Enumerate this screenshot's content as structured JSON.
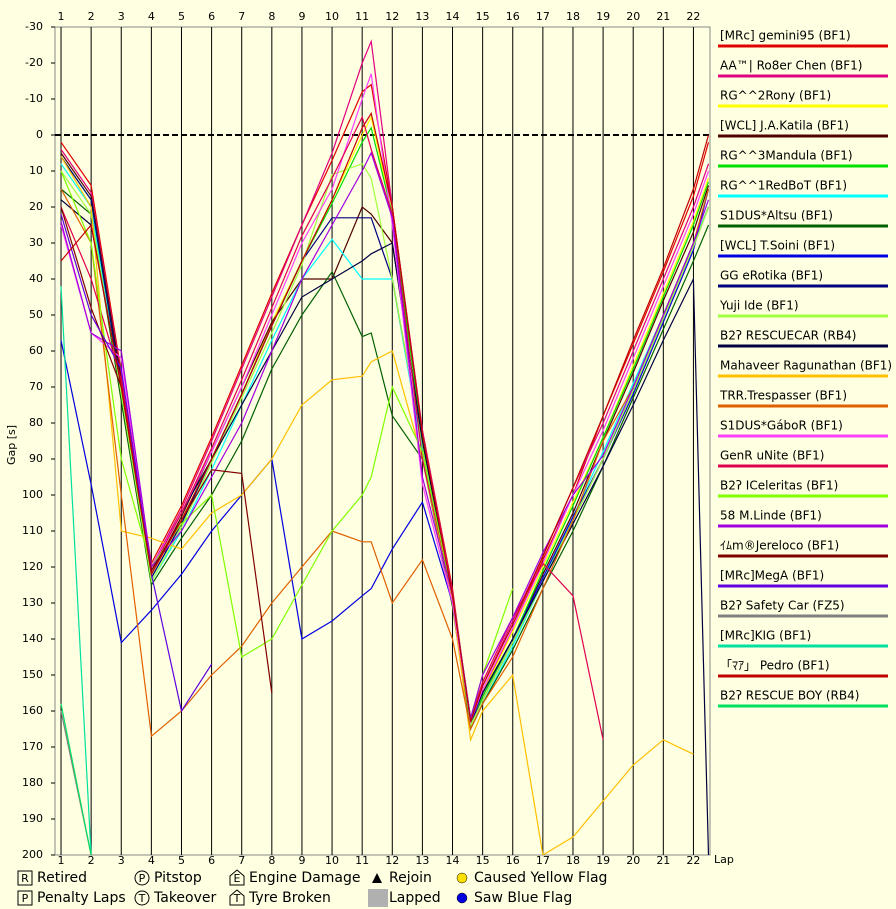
{
  "chart_data": {
    "type": "line",
    "y_label": "Gap [s]",
    "x_label": "Lap",
    "xlim": [
      0.8,
      22.55
    ],
    "xticks": [
      1,
      2,
      3,
      4,
      5,
      6,
      7,
      8,
      9,
      10,
      11,
      12,
      13,
      14,
      15,
      16,
      17,
      18,
      19,
      20,
      21,
      22
    ],
    "ylim": [
      200,
      -30
    ],
    "yticks": [
      -30,
      -20,
      -10,
      0,
      10,
      20,
      30,
      40,
      50,
      60,
      70,
      80,
      90,
      100,
      110,
      120,
      130,
      140,
      150,
      160,
      170,
      180,
      190,
      200
    ],
    "reference_line": 0,
    "x": [
      1,
      2,
      3,
      4,
      5,
      6,
      7,
      8,
      9,
      10,
      11,
      11.3,
      12,
      13,
      14,
      14.6,
      15,
      16,
      17,
      18,
      19,
      20,
      21,
      22,
      22.5
    ],
    "series": [
      {
        "name": "[MRc] gemini95 (BF1)",
        "color": "#e00000",
        "values": [
          2,
          14,
          66,
          119,
          103,
          84,
          64,
          44,
          25,
          7,
          -12,
          -14,
          20,
          82,
          126,
          164,
          155,
          137,
          118,
          100,
          78,
          58,
          38,
          17,
          2
        ]
      },
      {
        "name": "AA™| Ro8er Chen (BF1)",
        "color": "#e0007f",
        "values": [
          4,
          16,
          67,
          120,
          104,
          85,
          65,
          45,
          25,
          5,
          -20,
          -26,
          20,
          82,
          127,
          163,
          153,
          135,
          117,
          98,
          80,
          60,
          40,
          20,
          8
        ]
      },
      {
        "name": "RG^^2Rony (BF1)",
        "color": "#ffff00",
        "values": [
          8,
          20,
          70,
          122,
          107,
          90,
          72,
          52,
          35,
          18,
          0,
          -5,
          22,
          84,
          128,
          163,
          155,
          138,
          120,
          102,
          84,
          64,
          44,
          24,
          12
        ]
      },
      {
        "name": "[WCL] J.A.Katila (BF1)",
        "color": "#500000",
        "values": [
          5,
          17,
          68,
          122,
          106,
          88,
          70,
          52,
          40,
          40,
          20,
          22,
          30,
          85,
          128,
          164,
          156,
          140,
          122,
          105,
          85,
          66,
          46,
          27,
          14
        ]
      },
      {
        "name": "RG^^3Mandula (BF1)",
        "color": "#00e000",
        "values": [
          6,
          18,
          70,
          123,
          108,
          90,
          72,
          53,
          35,
          19,
          2,
          -2,
          22,
          85,
          129,
          164,
          156,
          140,
          121,
          103,
          84,
          65,
          45,
          25,
          13
        ]
      },
      {
        "name": "RG^^1RedBoT (BF1)",
        "color": "#00ffff",
        "values": [
          8,
          20,
          72,
          124,
          110,
          93,
          75,
          57,
          40,
          29,
          40,
          40,
          40,
          88,
          130,
          165,
          158,
          142,
          124,
          106,
          88,
          69,
          50,
          30,
          20
        ]
      },
      {
        "name": "S1DUS*Altsu (BF1)",
        "color": "#006000",
        "values": [
          15,
          22,
          74,
          125,
          112,
          100,
          85,
          65,
          50,
          38,
          56,
          55,
          78,
          90,
          131,
          165,
          158,
          143,
          126,
          110,
          92,
          73,
          54,
          35,
          25
        ]
      },
      {
        "name": "[WCL] T.Soini (BF1)",
        "color": "#0000e0",
        "values": [
          57,
          97,
          141,
          132,
          122,
          110,
          100,
          90,
          140,
          135,
          128,
          126,
          115,
          102,
          130,
          163,
          155,
          140,
          123,
          106,
          90,
          72,
          52,
          32,
          15
        ]
      },
      {
        "name": "GG eRotika (BF1)",
        "color": "#000080",
        "values": [
          6,
          18,
          70,
          123,
          108,
          90,
          72,
          53,
          35,
          23,
          23,
          23,
          40,
          86,
          128,
          163,
          157,
          141,
          124,
          107,
          90,
          71,
          51,
          31,
          20
        ]
      },
      {
        "name": "Yuji Ide (BF1)",
        "color": "#a0ff40",
        "values": [
          10,
          22,
          72,
          124,
          109,
          91,
          73,
          55,
          36,
          11,
          8,
          12,
          40,
          86,
          129,
          164,
          157,
          141,
          124,
          107,
          90,
          71,
          51,
          31,
          20
        ]
      },
      {
        "name": "B2ʔ RESCUECAR (RB4)",
        "color": "#000040",
        "values": [
          18,
          25,
          70,
          120,
          105,
          90,
          75,
          60,
          45,
          40,
          35,
          33,
          30,
          85,
          128,
          162,
          155,
          140,
          124,
          108,
          92,
          75,
          57,
          40,
          200
        ]
      },
      {
        "name": "Mahaveer Ragunathan (BF1)",
        "color": "#ffc000",
        "values": [
          6,
          20,
          110,
          112,
          115,
          105,
          100,
          90,
          75,
          68,
          67,
          63,
          60,
          90,
          130,
          168,
          160,
          150,
          200,
          195,
          185,
          175,
          168,
          172,
          null
        ]
      },
      {
        "name": "TRR.Trespasser (BF1)",
        "color": "#e06000",
        "values": [
          15,
          30,
          100,
          167,
          160,
          150,
          142,
          130,
          120,
          110,
          113,
          113,
          130,
          118,
          140,
          165,
          158,
          145,
          126,
          107,
          85,
          70,
          50,
          30,
          15
        ]
      },
      {
        "name": "S1DUS*GáboR (BF1)",
        "color": "#ff40ff",
        "values": [
          25,
          55,
          62,
          120,
          105,
          88,
          70,
          50,
          30,
          15,
          -10,
          -17,
          25,
          97,
          130,
          163,
          154,
          137,
          119,
          100,
          82,
          62,
          42,
          22,
          10
        ]
      },
      {
        "name": "GenR uNite (BF1)",
        "color": "#e00050",
        "values": [
          20,
          40,
          68,
          121,
          105,
          87,
          68,
          48,
          28,
          12,
          -5,
          4,
          22,
          90,
          128,
          162,
          152,
          134,
          119,
          128,
          168,
          null,
          null,
          null,
          null
        ]
      },
      {
        "name": "B2ʔ ICeleritas (BF1)",
        "color": "#80ff00",
        "values": [
          10,
          30,
          90,
          120,
          108,
          100,
          145,
          140,
          125,
          110,
          100,
          95,
          70,
          88,
          128,
          162,
          150,
          126,
          null,
          null,
          null,
          null,
          null,
          null,
          null
        ]
      },
      {
        "name": "58 M.Linde (BF1)",
        "color": "#a000e0",
        "values": [
          24,
          55,
          60,
          120,
          110,
          95,
          80,
          60,
          40,
          25,
          10,
          5,
          23,
          95,
          128,
          162,
          150,
          134,
          116,
          100,
          89,
          70,
          50,
          30,
          18
        ]
      },
      {
        "name": "ｲﾑm®Jereloco (BF1)",
        "color": "#800000",
        "values": [
          20,
          48,
          70,
          121,
          107,
          93,
          94,
          155,
          null,
          null,
          null,
          null,
          null,
          null,
          null,
          null,
          null,
          null,
          null,
          null,
          null,
          null,
          null,
          null,
          null
        ]
      },
      {
        "name": "[MRc]MegA (BF1)",
        "color": "#6000e0",
        "values": [
          22,
          50,
          65,
          122,
          160,
          147,
          null,
          null,
          null,
          null,
          null,
          null,
          null,
          null,
          null,
          null,
          null,
          null,
          null,
          null,
          null,
          null,
          null,
          null,
          null
        ]
      },
      {
        "name": "B2ʔ Safety Car (FZ5)",
        "color": "#808080",
        "values": [
          160,
          200,
          null,
          null,
          null,
          null,
          null,
          null,
          null,
          null,
          null,
          null,
          null,
          null,
          null,
          null,
          null,
          null,
          null,
          null,
          null,
          null,
          null,
          null,
          null
        ]
      },
      {
        "name": "[MRc]KIG (BF1)",
        "color": "#00e0a0",
        "values": [
          42,
          200,
          null,
          null,
          null,
          null,
          null,
          null,
          null,
          null,
          null,
          null,
          null,
          null,
          null,
          null,
          null,
          null,
          null,
          null,
          null,
          null,
          null,
          null,
          null
        ]
      },
      {
        "name": "「ﾏｱ」 Pedro (BF1)",
        "color": "#c00000",
        "values": [
          35,
          25,
          70,
          122,
          107,
          90,
          72,
          53,
          35,
          18,
          -2,
          -6,
          20,
          83,
          128,
          163,
          153,
          136,
          117,
          98,
          78,
          57,
          37,
          15,
          0
        ]
      },
      {
        "name": "B2ʔ RESCUE BOY (RB4)",
        "color": "#00e060",
        "values": [
          158,
          200,
          null,
          null,
          null,
          null,
          null,
          null,
          null,
          null,
          null,
          null,
          null,
          null,
          null,
          null,
          null,
          null,
          null,
          null,
          null,
          null,
          null,
          null,
          null
        ]
      }
    ]
  },
  "symbol_legend": [
    {
      "shape": "box",
      "icon": "R",
      "label": "Retired"
    },
    {
      "shape": "circle",
      "icon": "P",
      "label": "Pitstop"
    },
    {
      "shape": "house",
      "icon": "E",
      "label": "Engine Damage"
    },
    {
      "shape": "triangle",
      "label": "Rejoin"
    },
    {
      "shape": "dot",
      "color": "#ffe000",
      "label": "Caused Yellow Flag"
    },
    {
      "shape": "box",
      "icon": "P",
      "label": "Penalty Laps"
    },
    {
      "shape": "circle",
      "icon": "T",
      "label": "Takeover"
    },
    {
      "shape": "house",
      "icon": "T",
      "label": "Tyre Broken"
    },
    {
      "shape": "square",
      "color": "#b0b0b0",
      "label": "Lapped"
    },
    {
      "shape": "dot",
      "color": "#0000e0",
      "label": "Saw Blue Flag"
    }
  ]
}
